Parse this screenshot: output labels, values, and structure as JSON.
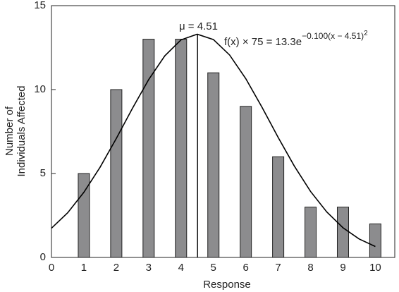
{
  "chart_data": {
    "type": "bar",
    "x": [
      1,
      2,
      3,
      4,
      5,
      6,
      7,
      8,
      9,
      10
    ],
    "values": [
      5,
      10,
      13,
      13,
      11,
      9,
      6,
      3,
      3,
      2
    ],
    "color": "#8c8c8e",
    "xlim": [
      0,
      10.6
    ],
    "ylim": [
      0,
      15
    ],
    "xticks": [
      0,
      1,
      2,
      3,
      4,
      5,
      6,
      7,
      8,
      9,
      10
    ],
    "yticks": [
      0,
      5,
      10,
      15
    ],
    "xlabel": "Response",
    "ylabel": [
      "Number of",
      "Individuals Affected"
    ],
    "curve": {
      "type": "line",
      "color": "#000000",
      "x": [
        0,
        0.5,
        1,
        1.5,
        2,
        2.5,
        3,
        3.5,
        4,
        4.5,
        5,
        5.5,
        6,
        6.5,
        7,
        7.5,
        8,
        8.5,
        9,
        9.5,
        10
      ],
      "values": [
        1.74,
        2.66,
        3.88,
        5.37,
        7.08,
        8.88,
        10.59,
        12.01,
        12.96,
        13.3,
        12.98,
        12.06,
        10.65,
        8.95,
        7.15,
        5.44,
        3.93,
        2.71,
        1.77,
        1.1,
        0.65
      ]
    },
    "mean": {
      "value": 4.51,
      "label": "μ = 4.51"
    },
    "formula": {
      "base": "f(x) × 75 = 13.3e",
      "exponent": "−0.100(x − 4.51)",
      "power": "2"
    }
  }
}
